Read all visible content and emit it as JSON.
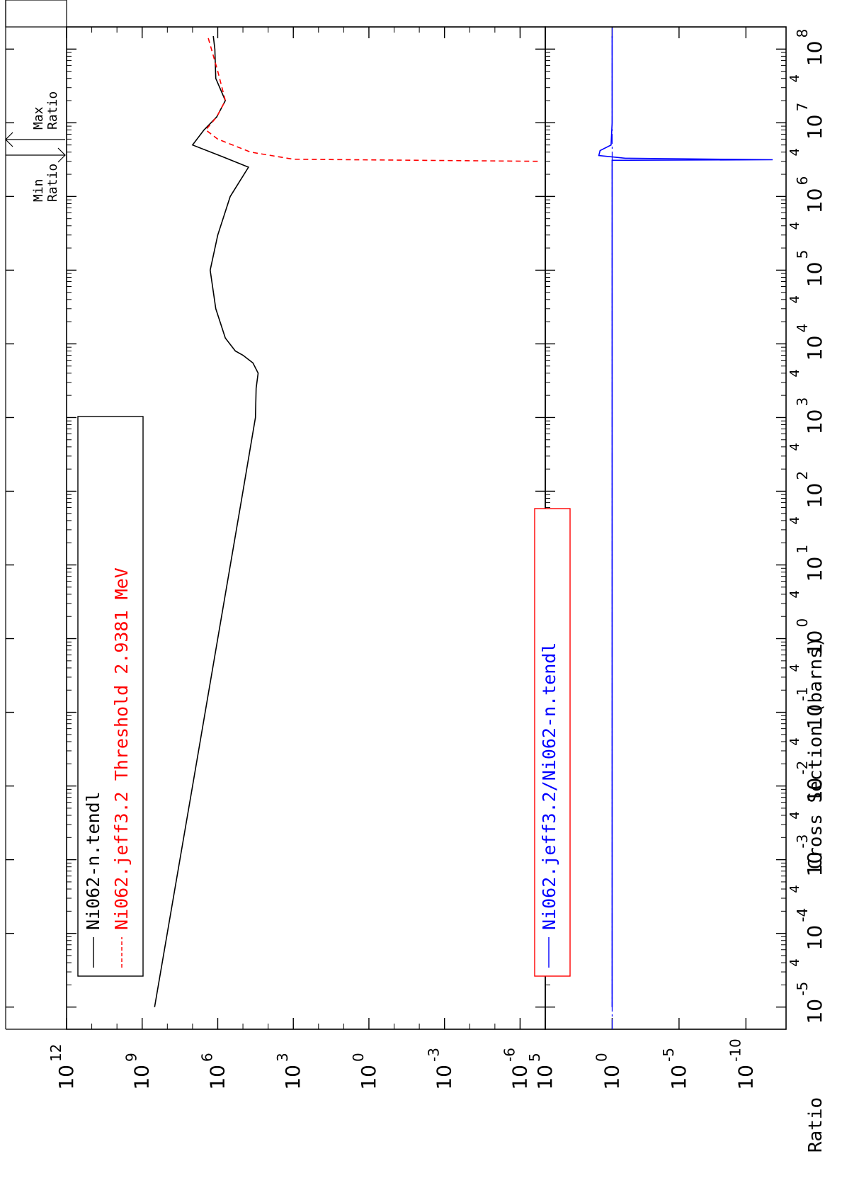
{
  "chart_data": [
    {
      "type": "line",
      "ylabel": "Cross Section (barns)",
      "y_scale": "log",
      "x_scale": "log",
      "ylim": [
        1e-07,
        1000000000000.0
      ],
      "xlim": [
        5e-06,
        200000000.0
      ],
      "y_tick_labels": [
        {
          "base": "10",
          "exp": "12",
          "value": 1000000000000.0
        },
        {
          "base": "10",
          "exp": "9",
          "value": 1000000000.0
        },
        {
          "base": "10",
          "exp": "6",
          "value": 1000000.0
        },
        {
          "base": "10",
          "exp": "3",
          "value": 1000.0
        },
        {
          "base": "10",
          "exp": "0",
          "value": 1
        },
        {
          "base": "10",
          "exp": "-3",
          "value": 0.001
        },
        {
          "base": "10",
          "exp": "-6",
          "value": 1e-06
        }
      ],
      "legend_position": "bottom-left",
      "series": [
        {
          "name": "Ni062-n.tendl",
          "color": "#000000",
          "style": "solid",
          "points": [
            [
              1e-05,
              320000000.0
            ],
            [
              0.01,
              10000000.0
            ],
            [
              1,
              1000000.0
            ],
            [
              100,
              100000.0
            ],
            [
              1000,
              32000.0
            ],
            [
              2500,
              30000.0
            ],
            [
              4000,
              25000.0
            ],
            [
              5500,
              40000.0
            ],
            [
              7000,
              100000.0
            ],
            [
              8000,
              200000.0
            ],
            [
              12000,
              500000.0
            ],
            [
              30000,
              1200000.0
            ],
            [
              100000,
              2000000.0
            ],
            [
              300000,
              1000000.0
            ],
            [
              1000000.0,
              320000.0
            ],
            [
              2500000.0,
              60000.0
            ],
            [
              3500000.0,
              700000.0
            ],
            [
              5000000.0,
              10000000.0
            ],
            [
              8000000.0,
              3500000.0
            ],
            [
              12000000.0,
              1100000.0
            ],
            [
              20000000.0,
              500000.0
            ],
            [
              40000000.0,
              1200000.0
            ],
            [
              100000000.0,
              1300000.0
            ],
            [
              150000000.0,
              1500000.0
            ]
          ]
        },
        {
          "name": "Ni062.jeff3.2 Threshold 2.9381 MeV",
          "color": "#ff0000",
          "style": "dashed",
          "points": [
            [
              3000000.0,
              2e-07
            ],
            [
              3200000.0,
              1000.0
            ],
            [
              4000000.0,
              50000.0
            ],
            [
              6000000.0,
              1000000.0
            ],
            [
              8000000.0,
              3000000.0
            ],
            [
              12000000.0,
              1100000.0
            ],
            [
              20000000.0,
              500000.0
            ],
            [
              50000000.0,
              1000000.0
            ],
            [
              150000000.0,
              2500000.0
            ]
          ]
        }
      ]
    },
    {
      "type": "line",
      "ylabel": "Ratio",
      "y_scale": "log",
      "x_scale": "log",
      "ylim": [
        1e-13,
        100000.0
      ],
      "xlim": [
        5e-06,
        200000000.0
      ],
      "y_tick_labels": [
        {
          "base": "10",
          "exp": "5",
          "value": 100000.0
        },
        {
          "base": "10",
          "exp": "0",
          "value": 1
        },
        {
          "base": "10",
          "exp": "-5",
          "value": 1e-05
        },
        {
          "base": "10",
          "exp": "-10",
          "value": 1e-10
        }
      ],
      "x_tick_labels": [
        {
          "base": "10",
          "exp": "-5",
          "value": 1e-05
        },
        {
          "base": "10",
          "exp": "-4",
          "value": 0.0001
        },
        {
          "base": "10",
          "exp": "-3",
          "value": 0.001
        },
        {
          "base": "10",
          "exp": "-2",
          "value": 0.01
        },
        {
          "base": "10",
          "exp": "-1",
          "value": 0.1
        },
        {
          "base": "10",
          "exp": "0",
          "value": 1
        },
        {
          "base": "10",
          "exp": "1",
          "value": 10
        },
        {
          "base": "10",
          "exp": "2",
          "value": 100
        },
        {
          "base": "10",
          "exp": "3",
          "value": 1000
        },
        {
          "base": "10",
          "exp": "4",
          "value": 10000
        },
        {
          "base": "10",
          "exp": "5",
          "value": 100000
        },
        {
          "base": "10",
          "exp": "6",
          "value": 1000000
        },
        {
          "base": "10",
          "exp": "7",
          "value": 10000000
        },
        {
          "base": "10",
          "exp": "8",
          "value": 100000000
        }
      ],
      "minor_tick_label": "4",
      "legend_position": "bottom-left",
      "series": [
        {
          "name": "Ni062.jeff3.2/Ni062-n.tendl",
          "color": "#0000ff",
          "style": "solid",
          "points": [
            [
              1e-05,
              1
            ],
            [
              3100000.0,
              1
            ],
            [
              3150000.0,
              1e-12
            ],
            [
              3300000.0,
              0.1
            ],
            [
              3600000.0,
              10
            ],
            [
              4200000.0,
              8
            ],
            [
              5000000.0,
              1.2
            ],
            [
              10000000.0,
              1.0
            ],
            [
              150000000.0,
              1.0
            ]
          ]
        }
      ]
    }
  ],
  "ratio_markers": {
    "max_label_line1": "Max",
    "max_label_line2": "Ratio",
    "min_label_line1": "Min",
    "min_label_line2": "Ratio"
  },
  "colors": {
    "tendl": "#000000",
    "jeff": "#ff0000",
    "ratio": "#0000ff",
    "ratio_legend_border": "#ff0000"
  }
}
